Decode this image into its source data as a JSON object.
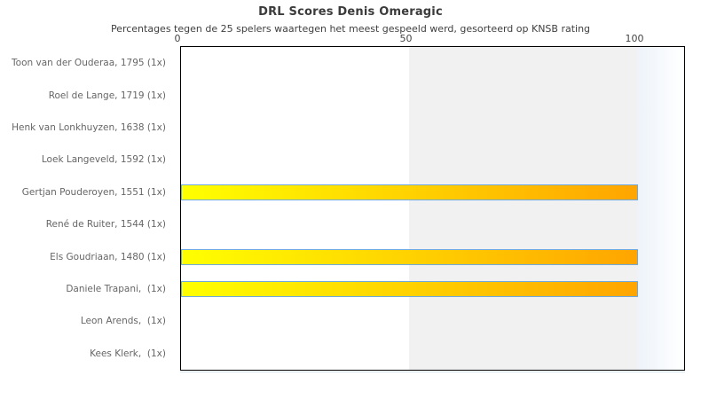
{
  "title": "DRL Scores Denis Omeragic",
  "subtitle": "Percentages tegen de 25 spelers waartegen het meest gespeeld werd, gesorteerd op KNSB rating",
  "chart_data": {
    "type": "bar",
    "orientation": "horizontal",
    "title": "DRL Scores Denis Omeragic",
    "subtitle": "Percentages tegen de 25 spelers waartegen het meest gespeeld werd, gesorteerd op KNSB rating",
    "categories": [
      "Toon van der Ouderaa, 1795 (1x)",
      "Roel de Lange, 1719 (1x)",
      "Henk van Lonkhuyzen, 1638 (1x)",
      "Loek Langeveld, 1592 (1x)",
      "Gertjan Pouderoyen, 1551 (1x)",
      "René de Ruiter, 1544 (1x)",
      "Els Goudriaan, 1480 (1x)",
      "Daniele Trapani,  (1x)",
      "Leon Arends,  (1x)",
      "Kees Klerk,  (1x)"
    ],
    "values": [
      0,
      0,
      0,
      0,
      100,
      0,
      100,
      100,
      0,
      0
    ],
    "x_ticks": [
      0,
      50,
      100
    ],
    "xlim": [
      0,
      110
    ],
    "xlabel": "",
    "ylabel": "",
    "grid": "alternating-bands",
    "legend": "none",
    "colors": {
      "bar_gradient_start": "#ffff00",
      "bar_gradient_end": "#ffa500",
      "bar_border": "#6fa8dc",
      "band_gray": "#f1f1f1",
      "band_fade": "#edf3fa",
      "plot_border": "#000000",
      "label_text": "#666666",
      "title_text": "#3b3b3b"
    }
  }
}
